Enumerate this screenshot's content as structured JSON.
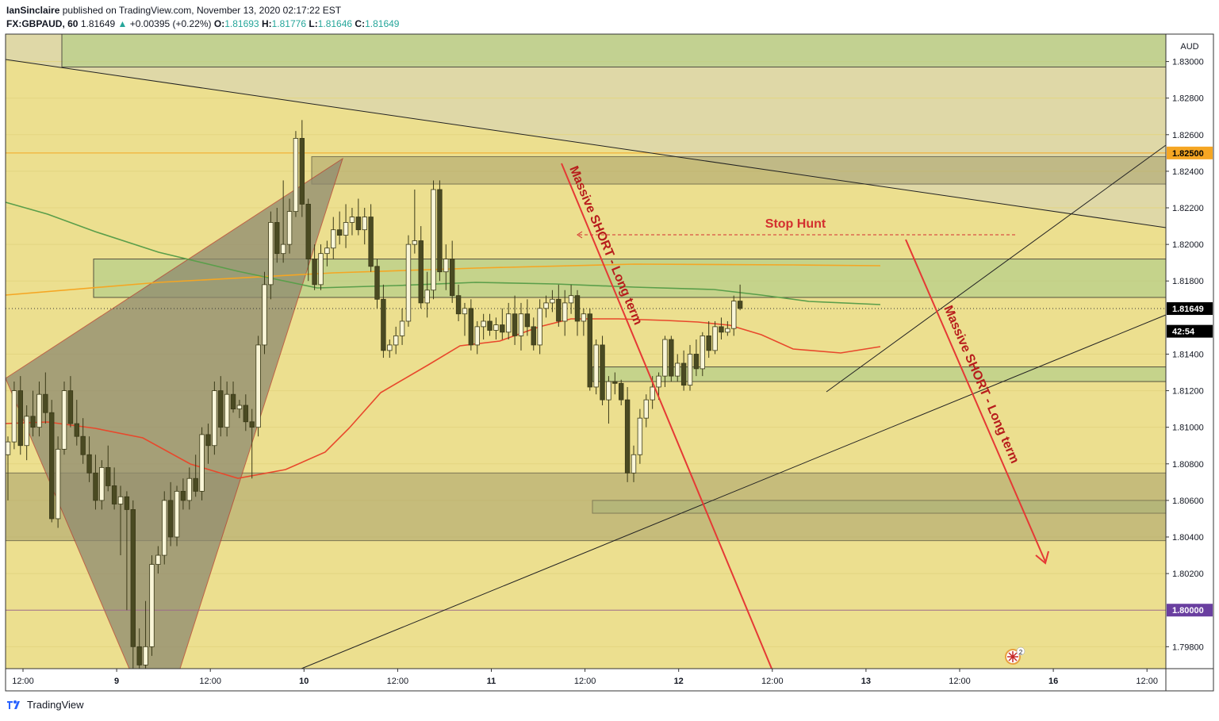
{
  "header": {
    "author": "IanSinclaire",
    "published_on": "published on TradingView.com, November 13, 2020 02:17:22 EST",
    "symbol": "FX:GBPAUD, 60",
    "last": "1.81649",
    "change": "+0.00395 (+0.22%)",
    "o_label": "O:",
    "o": "1.81693",
    "h_label": "H:",
    "h": "1.81776",
    "l_label": "L:",
    "l": "1.81646",
    "c_label": "C:",
    "c": "1.81649"
  },
  "footer": {
    "brand": "TradingView"
  },
  "chart_data": {
    "type": "candlestick",
    "currency": "AUD",
    "y_ticks": [
      "1.83000",
      "1.82800",
      "1.82600",
      "1.82400",
      "1.82200",
      "1.82000",
      "1.81800",
      "1.81400",
      "1.81200",
      "1.81000",
      "1.80800",
      "1.80600",
      "1.80400",
      "1.80200",
      "1.79800"
    ],
    "ylim": [
      1.7968,
      1.8315
    ],
    "x_ticks": [
      "12:00",
      "9",
      "12:00",
      "10",
      "12:00",
      "11",
      "12:00",
      "12",
      "12:00",
      "13",
      "12:00",
      "16",
      "12:00"
    ],
    "price_badges": [
      {
        "label": "1.82500",
        "value": 1.825,
        "color": "#f5a623",
        "text_color": "#000000"
      },
      {
        "label": "1.81649",
        "value": 1.81649,
        "color": "#000000",
        "text_color": "#ffffff"
      },
      {
        "label": "42:54",
        "value": 1.81525,
        "color": "#000000",
        "text_color": "#ffffff"
      },
      {
        "label": "1.80000",
        "value": 1.8,
        "color": "#6a3fa0",
        "text_color": "#ffffff"
      }
    ],
    "annotations": [
      {
        "text": "Stop Hunt",
        "color": "#d32f2f"
      },
      {
        "text": "Massive SHORT - Long term",
        "color": "#b71c1c"
      },
      {
        "text": "Massive SHORT - Long term",
        "color": "#b71c1c"
      }
    ],
    "candles": [
      [
        1.8085,
        1.8095,
        1.806,
        1.8092
      ],
      [
        1.8092,
        1.8125,
        1.8088,
        1.812
      ],
      [
        1.812,
        1.8128,
        1.8085,
        1.809
      ],
      [
        1.809,
        1.8112,
        1.8082,
        1.8106
      ],
      [
        1.8106,
        1.812,
        1.8095,
        1.81
      ],
      [
        1.81,
        1.8125,
        1.8095,
        1.8118
      ],
      [
        1.8118,
        1.813,
        1.8102,
        1.8108
      ],
      [
        1.8108,
        1.8115,
        1.8048,
        1.805
      ],
      [
        1.805,
        1.8095,
        1.8045,
        1.8088
      ],
      [
        1.8088,
        1.8125,
        1.8085,
        1.812
      ],
      [
        1.812,
        1.8128,
        1.81,
        1.8102
      ],
      [
        1.8102,
        1.8115,
        1.809,
        1.8095
      ],
      [
        1.8095,
        1.8105,
        1.808,
        1.8085
      ],
      [
        1.8085,
        1.8095,
        1.807,
        1.8075
      ],
      [
        1.8075,
        1.8085,
        1.8055,
        1.806
      ],
      [
        1.806,
        1.8082,
        1.8055,
        1.8078
      ],
      [
        1.8078,
        1.809,
        1.8065,
        1.8068
      ],
      [
        1.8068,
        1.8078,
        1.8055,
        1.8058
      ],
      [
        1.8058,
        1.8068,
        1.803,
        1.8062
      ],
      [
        1.8062,
        1.8065,
        1.8,
        1.8055
      ],
      [
        1.8055,
        1.806,
        1.7965,
        1.798
      ],
      [
        1.798,
        1.799,
        1.796,
        1.797
      ],
      [
        1.797,
        1.8005,
        1.7965,
        1.798
      ],
      [
        1.798,
        1.803,
        1.7975,
        1.8025
      ],
      [
        1.8025,
        1.8035,
        1.802,
        1.803
      ],
      [
        1.803,
        1.8065,
        1.8025,
        1.806
      ],
      [
        1.806,
        1.807,
        1.8035,
        1.804
      ],
      [
        1.804,
        1.8068,
        1.8035,
        1.8065
      ],
      [
        1.8065,
        1.8072,
        1.8055,
        1.806
      ],
      [
        1.806,
        1.8078,
        1.8055,
        1.8072
      ],
      [
        1.8072,
        1.8085,
        1.8062,
        1.8065
      ],
      [
        1.8065,
        1.81,
        1.806,
        1.8096
      ],
      [
        1.8096,
        1.8102,
        1.808,
        1.809
      ],
      [
        1.809,
        1.8125,
        1.8085,
        1.812
      ],
      [
        1.812,
        1.8128,
        1.8095,
        1.81
      ],
      [
        1.81,
        1.8125,
        1.8095,
        1.8118
      ],
      [
        1.8118,
        1.8125,
        1.8108,
        1.811
      ],
      [
        1.811,
        1.8115,
        1.8105,
        1.8112
      ],
      [
        1.8112,
        1.8118,
        1.8098,
        1.8103
      ],
      [
        1.8103,
        1.811,
        1.8072,
        1.81
      ],
      [
        1.81,
        1.815,
        1.8095,
        1.8145
      ],
      [
        1.8145,
        1.8185,
        1.814,
        1.8178
      ],
      [
        1.8178,
        1.8218,
        1.817,
        1.8212
      ],
      [
        1.8212,
        1.822,
        1.819,
        1.8195
      ],
      [
        1.8195,
        1.8235,
        1.819,
        1.82
      ],
      [
        1.82,
        1.8225,
        1.8195,
        1.8218
      ],
      [
        1.8218,
        1.8262,
        1.8215,
        1.8258
      ],
      [
        1.8258,
        1.8268,
        1.8215,
        1.8222
      ],
      [
        1.8222,
        1.8225,
        1.818,
        1.8192
      ],
      [
        1.8192,
        1.82,
        1.8175,
        1.8178
      ],
      [
        1.8178,
        1.82,
        1.8175,
        1.8195
      ],
      [
        1.8195,
        1.8202,
        1.8188,
        1.8198
      ],
      [
        1.8198,
        1.8215,
        1.8192,
        1.8208
      ],
      [
        1.8208,
        1.8218,
        1.82,
        1.8205
      ],
      [
        1.8205,
        1.8222,
        1.8198,
        1.8212
      ],
      [
        1.8212,
        1.822,
        1.8205,
        1.8215
      ],
      [
        1.8215,
        1.8225,
        1.8205,
        1.8208
      ],
      [
        1.8208,
        1.822,
        1.82,
        1.8215
      ],
      [
        1.8215,
        1.8222,
        1.8185,
        1.8188
      ],
      [
        1.8188,
        1.8192,
        1.8165,
        1.817
      ],
      [
        1.817,
        1.8178,
        1.8138,
        1.8142
      ],
      [
        1.8142,
        1.8148,
        1.8138,
        1.8145
      ],
      [
        1.8145,
        1.8155,
        1.814,
        1.815
      ],
      [
        1.815,
        1.8165,
        1.8145,
        1.8158
      ],
      [
        1.8158,
        1.8205,
        1.8155,
        1.82
      ],
      [
        1.82,
        1.823,
        1.8195,
        1.8202
      ],
      [
        1.8202,
        1.821,
        1.8165,
        1.8168
      ],
      [
        1.8168,
        1.8185,
        1.816,
        1.8175
      ],
      [
        1.8175,
        1.8235,
        1.817,
        1.823
      ],
      [
        1.823,
        1.8235,
        1.818,
        1.8185
      ],
      [
        1.8185,
        1.82,
        1.8175,
        1.8192
      ],
      [
        1.8192,
        1.8202,
        1.8168,
        1.8172
      ],
      [
        1.8172,
        1.8178,
        1.8158,
        1.8162
      ],
      [
        1.8162,
        1.8168,
        1.815,
        1.8165
      ],
      [
        1.8165,
        1.817,
        1.8142,
        1.8145
      ],
      [
        1.8145,
        1.8158,
        1.814,
        1.8155
      ],
      [
        1.8155,
        1.8162,
        1.8148,
        1.8158
      ],
      [
        1.8158,
        1.8162,
        1.815,
        1.8153
      ],
      [
        1.8153,
        1.816,
        1.8148,
        1.8156
      ],
      [
        1.8156,
        1.8165,
        1.8148,
        1.8152
      ],
      [
        1.8152,
        1.8168,
        1.8148,
        1.8162
      ],
      [
        1.8162,
        1.8172,
        1.8145,
        1.815
      ],
      [
        1.815,
        1.8168,
        1.8142,
        1.8162
      ],
      [
        1.8162,
        1.817,
        1.815,
        1.8155
      ],
      [
        1.8155,
        1.816,
        1.8142,
        1.8145
      ],
      [
        1.8145,
        1.817,
        1.814,
        1.8165
      ],
      [
        1.8165,
        1.8172,
        1.816,
        1.8168
      ],
      [
        1.8168,
        1.8175,
        1.8163,
        1.817
      ],
      [
        1.817,
        1.8178,
        1.8155,
        1.8158
      ],
      [
        1.8158,
        1.8175,
        1.815,
        1.8168
      ],
      [
        1.8168,
        1.8178,
        1.8162,
        1.8172
      ],
      [
        1.8172,
        1.8175,
        1.815,
        1.8158
      ],
      [
        1.8158,
        1.8165,
        1.815,
        1.8162
      ],
      [
        1.8162,
        1.8165,
        1.812,
        1.8122
      ],
      [
        1.8122,
        1.8148,
        1.8118,
        1.8145
      ],
      [
        1.8145,
        1.815,
        1.8112,
        1.8115
      ],
      [
        1.8115,
        1.8128,
        1.8102,
        1.8125
      ],
      [
        1.8125,
        1.813,
        1.8118,
        1.8124
      ],
      [
        1.8124,
        1.8126,
        1.8112,
        1.8115
      ],
      [
        1.8115,
        1.8122,
        1.807,
        1.8075
      ],
      [
        1.8075,
        1.809,
        1.807,
        1.8085
      ],
      [
        1.8085,
        1.811,
        1.808,
        1.8105
      ],
      [
        1.8105,
        1.8118,
        1.81,
        1.8115
      ],
      [
        1.8115,
        1.8128,
        1.811,
        1.8122
      ],
      [
        1.8122,
        1.813,
        1.8115,
        1.8128
      ],
      [
        1.8128,
        1.815,
        1.8122,
        1.8148
      ],
      [
        1.8148,
        1.815,
        1.8125,
        1.8128
      ],
      [
        1.8128,
        1.814,
        1.8125,
        1.8135
      ],
      [
        1.8135,
        1.8142,
        1.812,
        1.8123
      ],
      [
        1.8123,
        1.8145,
        1.812,
        1.814
      ],
      [
        1.814,
        1.8148,
        1.8128,
        1.8132
      ],
      [
        1.8132,
        1.8152,
        1.8128,
        1.815
      ],
      [
        1.815,
        1.8158,
        1.8138,
        1.8142
      ],
      [
        1.8142,
        1.8158,
        1.814,
        1.8155
      ],
      [
        1.8155,
        1.816,
        1.8148,
        1.8152
      ],
      [
        1.8152,
        1.8158,
        1.815,
        1.8154
      ],
      [
        1.8154,
        1.8172,
        1.815,
        1.8169
      ],
      [
        1.8169,
        1.8178,
        1.8164,
        1.8165
      ]
    ],
    "zones": [
      {
        "from": 1.8297,
        "to": 1.8315,
        "color": "green"
      },
      {
        "from": 1.8233,
        "to": 1.8248,
        "color": "dark"
      },
      {
        "from": 1.8171,
        "to": 1.8192,
        "color": "green"
      },
      {
        "from": 1.8125,
        "to": 1.8133,
        "color": "green"
      },
      {
        "from": 1.8053,
        "to": 1.806,
        "color": "green"
      },
      {
        "from": 1.8038,
        "to": 1.8075,
        "color": "dark"
      }
    ],
    "grid": true
  }
}
